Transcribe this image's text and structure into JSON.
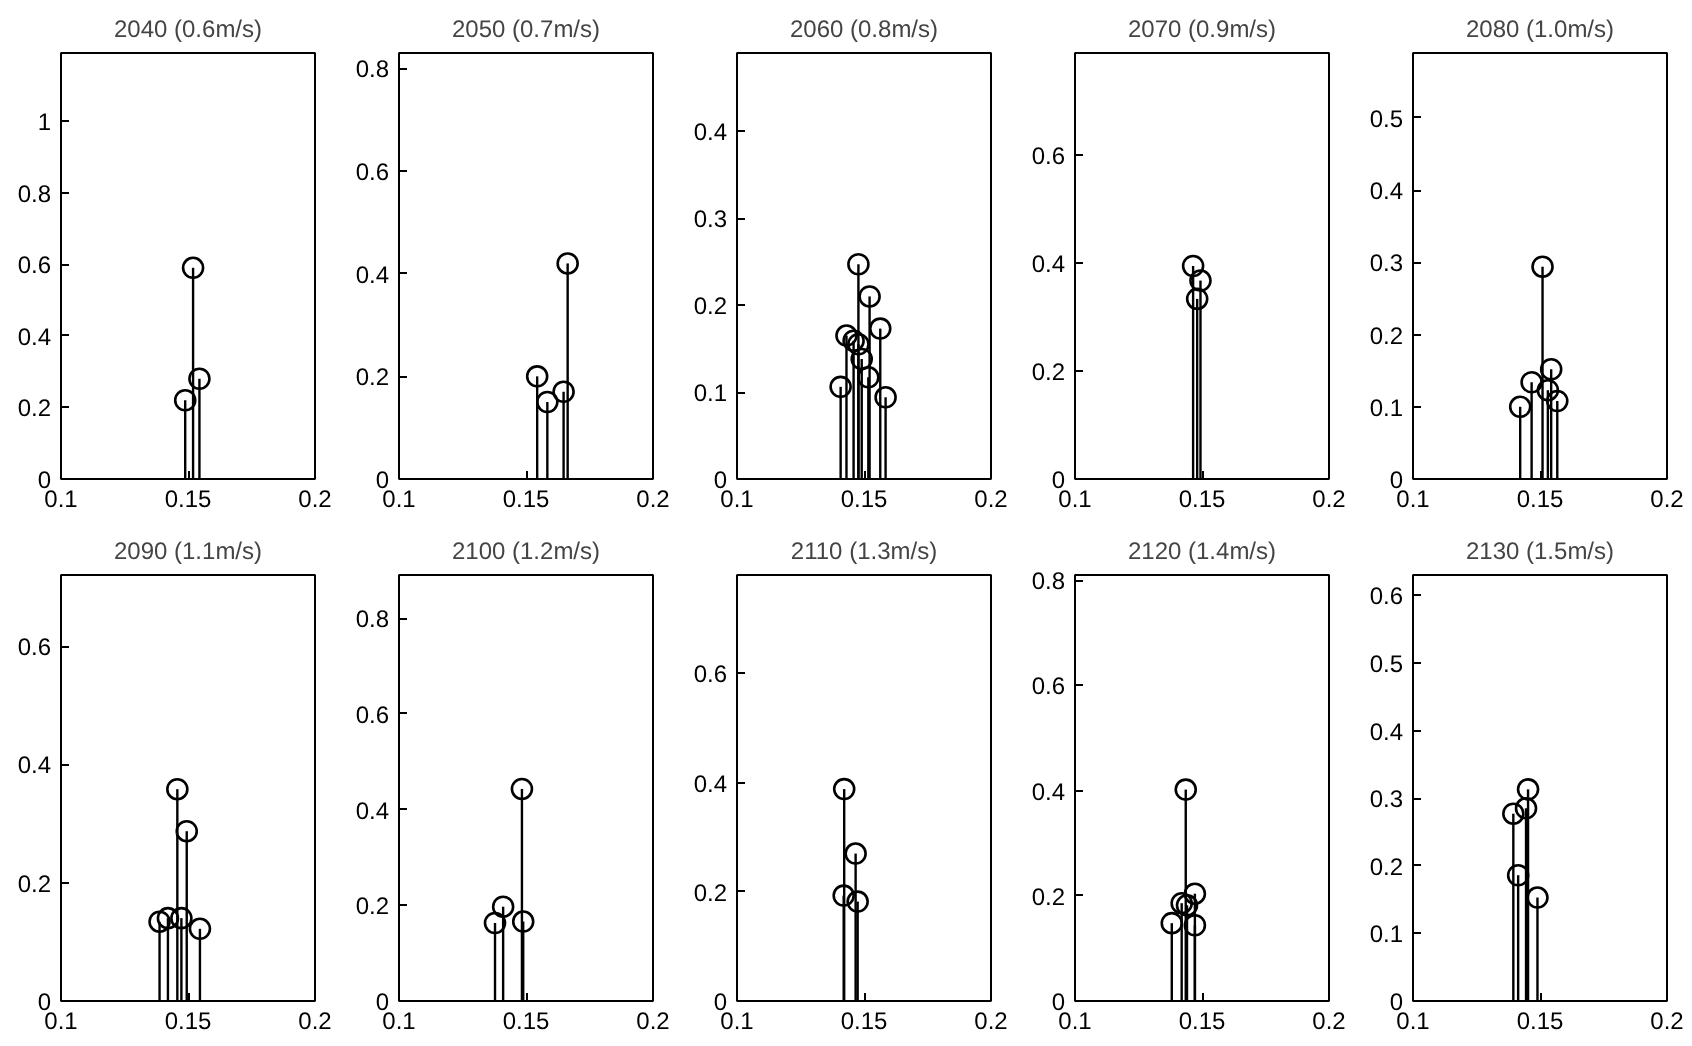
{
  "chart_data": [
    {
      "type": "lollipop",
      "title": "2040 (0.6m/s)",
      "x": [
        0.1489,
        0.152,
        0.1545
      ],
      "values": [
        0.22,
        0.59,
        0.28
      ],
      "color": "#000000",
      "marker": "circle",
      "xlim": [
        0.1,
        0.2
      ],
      "xticks": [
        0.1,
        0.15,
        0.2
      ],
      "ylim": [
        0,
        1.19
      ],
      "yticks": [
        0,
        0.2,
        0.4,
        0.6,
        0.8,
        1
      ],
      "grid": false
    },
    {
      "type": "lollipop",
      "title": "2050 (0.7m/s)",
      "x": [
        0.1544,
        0.1584,
        0.1648,
        0.1664
      ],
      "values": [
        0.2,
        0.15,
        0.17,
        0.42
      ],
      "color": "#000000",
      "marker": "circle",
      "xlim": [
        0.1,
        0.2
      ],
      "xticks": [
        0.1,
        0.15,
        0.2
      ],
      "ylim": [
        0,
        0.83
      ],
      "yticks": [
        0,
        0.2,
        0.4,
        0.6,
        0.8
      ],
      "grid": false
    },
    {
      "type": "lollipop",
      "title": "2060 (0.8m/s)",
      "x": [
        0.1408,
        0.1431,
        0.1459,
        0.1478,
        0.1478,
        0.1491,
        0.1517,
        0.1522,
        0.1564,
        0.1585
      ],
      "values": [
        0.106,
        0.165,
        0.159,
        0.247,
        0.155,
        0.138,
        0.117,
        0.21,
        0.173,
        0.094
      ],
      "color": "#000000",
      "marker": "circle",
      "xlim": [
        0.1,
        0.2
      ],
      "xticks": [
        0.1,
        0.15,
        0.2
      ],
      "ylim": [
        0,
        0.49
      ],
      "yticks": [
        0,
        0.1,
        0.2,
        0.3,
        0.4
      ],
      "grid": false
    },
    {
      "type": "lollipop",
      "title": "2070 (0.9m/s)",
      "x": [
        0.1465,
        0.1481,
        0.1494
      ],
      "values": [
        0.395,
        0.334,
        0.368
      ],
      "color": "#000000",
      "marker": "circle",
      "xlim": [
        0.1,
        0.2
      ],
      "xticks": [
        0.1,
        0.15,
        0.2
      ],
      "ylim": [
        0,
        0.79
      ],
      "yticks": [
        0,
        0.2,
        0.4,
        0.6
      ],
      "grid": false
    },
    {
      "type": "lollipop",
      "title": "2080 (1.0m/s)",
      "x": [
        0.1422,
        0.1467,
        0.151,
        0.1531,
        0.1544,
        0.1568
      ],
      "values": [
        0.1,
        0.134,
        0.294,
        0.123,
        0.152,
        0.108
      ],
      "color": "#000000",
      "marker": "circle",
      "xlim": [
        0.1,
        0.2
      ],
      "xticks": [
        0.1,
        0.15,
        0.2
      ],
      "ylim": [
        0,
        0.59
      ],
      "yticks": [
        0,
        0.1,
        0.2,
        0.3,
        0.4,
        0.5
      ],
      "grid": false
    },
    {
      "type": "lollipop",
      "title": "2090 (1.1m/s)",
      "x": [
        0.1388,
        0.1421,
        0.1458,
        0.1474,
        0.1495,
        0.1547
      ],
      "values": [
        0.134,
        0.14,
        0.358,
        0.14,
        0.287,
        0.122
      ],
      "color": "#000000",
      "marker": "circle",
      "xlim": [
        0.1,
        0.2
      ],
      "xticks": [
        0.1,
        0.15,
        0.2
      ],
      "ylim": [
        0,
        0.72
      ],
      "yticks": [
        0,
        0.2,
        0.4,
        0.6
      ],
      "grid": false
    },
    {
      "type": "lollipop",
      "title": "2100 (1.2m/s)",
      "x": [
        0.1378,
        0.141,
        0.1484,
        0.1489
      ],
      "values": [
        0.163,
        0.197,
        0.443,
        0.166
      ],
      "color": "#000000",
      "marker": "circle",
      "xlim": [
        0.1,
        0.2
      ],
      "xticks": [
        0.1,
        0.15,
        0.2
      ],
      "ylim": [
        0,
        0.89
      ],
      "yticks": [
        0,
        0.2,
        0.4,
        0.6,
        0.8
      ],
      "grid": false
    },
    {
      "type": "lollipop",
      "title": "2110 (1.3m/s)",
      "x": [
        0.142,
        0.1422,
        0.1467,
        0.1475
      ],
      "values": [
        0.193,
        0.388,
        0.27,
        0.182
      ],
      "color": "#000000",
      "marker": "circle",
      "xlim": [
        0.1,
        0.2
      ],
      "xticks": [
        0.1,
        0.15,
        0.2
      ],
      "ylim": [
        0,
        0.78
      ],
      "yticks": [
        0,
        0.2,
        0.4,
        0.6
      ],
      "grid": false
    },
    {
      "type": "lollipop",
      "title": "2120 (1.4m/s)",
      "x": [
        0.1381,
        0.142,
        0.1436,
        0.1441,
        0.1472,
        0.1472
      ],
      "values": [
        0.148,
        0.186,
        0.402,
        0.182,
        0.204,
        0.144
      ],
      "color": "#000000",
      "marker": "circle",
      "xlim": [
        0.1,
        0.2
      ],
      "xticks": [
        0.1,
        0.15,
        0.2
      ],
      "ylim": [
        0,
        0.81
      ],
      "yticks": [
        0,
        0.2,
        0.4,
        0.6,
        0.8
      ],
      "grid": false
    },
    {
      "type": "lollipop",
      "title": "2130 (1.5m/s)",
      "x": [
        0.1395,
        0.1414,
        0.1445,
        0.1453,
        0.149
      ],
      "values": [
        0.277,
        0.186,
        0.285,
        0.313,
        0.153
      ],
      "color": "#000000",
      "marker": "circle",
      "xlim": [
        0.1,
        0.2
      ],
      "xticks": [
        0.1,
        0.15,
        0.2
      ],
      "ylim": [
        0,
        0.63
      ],
      "yticks": [
        0,
        0.1,
        0.2,
        0.3,
        0.4,
        0.5,
        0.6
      ],
      "grid": false
    }
  ]
}
